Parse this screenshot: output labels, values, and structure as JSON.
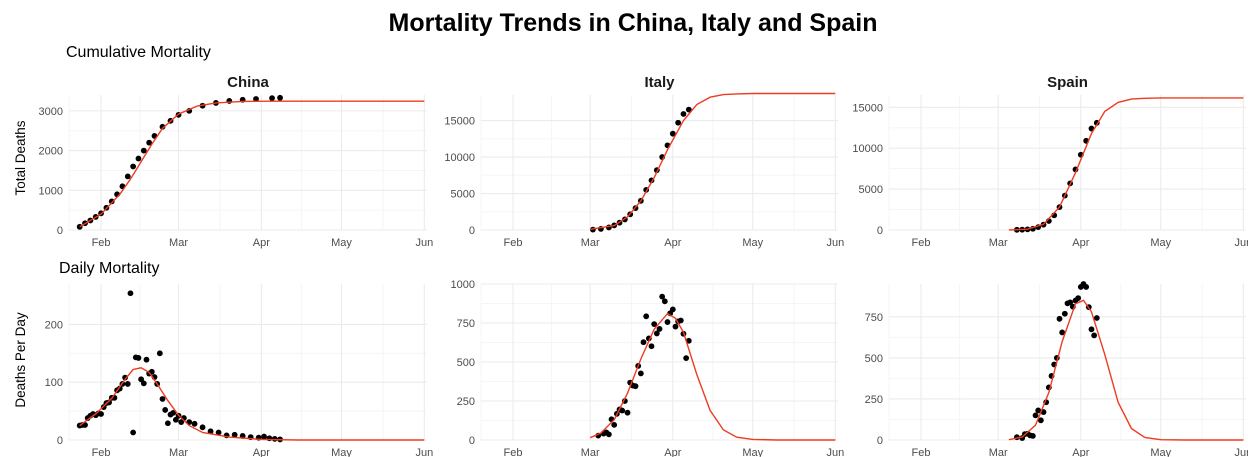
{
  "title": "Mortality Trends in China, Italy and Spain",
  "section_titles": {
    "cumulative": "Cumulative Mortality",
    "daily": "Daily Mortality"
  },
  "ylabels": {
    "cumulative": "Total Deaths",
    "daily": "Deaths Per Day"
  },
  "x_ticks": [
    "Feb",
    "Mar",
    "Apr",
    "May",
    "Jun"
  ],
  "colors": {
    "points": "#000000",
    "fit_line": "#ee3b22",
    "grid_major": "#ebebeb",
    "grid_minor": "#f5f5f5"
  },
  "chart_data": [
    {
      "type": "scatter",
      "panel": "China",
      "row": "cumulative",
      "xlabel": "",
      "ylabel": "Total Deaths",
      "xlim": [
        "2020-01-20",
        "2020-06-02"
      ],
      "ylim": [
        0,
        3400
      ],
      "yticks": [
        0,
        1000,
        2000,
        3000
      ],
      "series": [
        {
          "kind": "points",
          "x": [
            "2020-01-24",
            "2020-01-26",
            "2020-01-28",
            "2020-01-30",
            "2020-02-01",
            "2020-02-03",
            "2020-02-05",
            "2020-02-07",
            "2020-02-09",
            "2020-02-11",
            "2020-02-13",
            "2020-02-15",
            "2020-02-17",
            "2020-02-19",
            "2020-02-21",
            "2020-02-24",
            "2020-02-27",
            "2020-03-01",
            "2020-03-05",
            "2020-03-10",
            "2020-03-15",
            "2020-03-20",
            "2020-03-25",
            "2020-03-30",
            "2020-04-05",
            "2020-04-08"
          ],
          "y": [
            80,
            170,
            240,
            330,
            420,
            560,
            720,
            900,
            1100,
            1350,
            1600,
            1800,
            2000,
            2200,
            2370,
            2600,
            2750,
            2900,
            3000,
            3130,
            3200,
            3250,
            3280,
            3300,
            3320,
            3330
          ]
        },
        {
          "kind": "fit",
          "x": [
            "2020-01-24",
            "2020-02-01",
            "2020-02-08",
            "2020-02-12",
            "2020-02-16",
            "2020-02-20",
            "2020-02-24",
            "2020-03-01",
            "2020-03-08",
            "2020-03-15",
            "2020-03-25",
            "2020-04-05",
            "2020-05-01",
            "2020-06-01"
          ],
          "y": [
            80,
            400,
            900,
            1280,
            1720,
            2160,
            2560,
            2920,
            3120,
            3200,
            3240,
            3245,
            3245,
            3245
          ]
        }
      ]
    },
    {
      "type": "scatter",
      "panel": "Italy",
      "row": "cumulative",
      "xlabel": "",
      "ylabel": "",
      "xlim": [
        "2020-01-20",
        "2020-06-02"
      ],
      "ylim": [
        0,
        18500
      ],
      "yticks": [
        0,
        5000,
        10000,
        15000
      ],
      "series": [
        {
          "kind": "points",
          "x": [
            "2020-03-02",
            "2020-03-05",
            "2020-03-08",
            "2020-03-10",
            "2020-03-12",
            "2020-03-14",
            "2020-03-16",
            "2020-03-18",
            "2020-03-20",
            "2020-03-22",
            "2020-03-24",
            "2020-03-26",
            "2020-03-28",
            "2020-03-30",
            "2020-04-01",
            "2020-04-03",
            "2020-04-05",
            "2020-04-07"
          ],
          "y": [
            50,
            150,
            350,
            630,
            1000,
            1450,
            2150,
            3000,
            4000,
            5500,
            6800,
            8200,
            10000,
            11600,
            13200,
            14700,
            15900,
            16500
          ]
        },
        {
          "kind": "fit",
          "x": [
            "2020-03-01",
            "2020-03-10",
            "2020-03-15",
            "2020-03-20",
            "2020-03-25",
            "2020-03-30",
            "2020-04-05",
            "2020-04-10",
            "2020-04-15",
            "2020-04-20",
            "2020-04-25",
            "2020-05-01",
            "2020-06-01"
          ],
          "y": [
            100,
            600,
            1800,
            4000,
            7200,
            11000,
            15000,
            17200,
            18200,
            18550,
            18650,
            18700,
            18700
          ]
        }
      ]
    },
    {
      "type": "scatter",
      "panel": "Spain",
      "row": "cumulative",
      "xlabel": "",
      "ylabel": "",
      "xlim": [
        "2020-01-20",
        "2020-06-02"
      ],
      "ylim": [
        0,
        16500
      ],
      "yticks": [
        0,
        5000,
        10000,
        15000
      ],
      "series": [
        {
          "kind": "points",
          "x": [
            "2020-03-08",
            "2020-03-10",
            "2020-03-12",
            "2020-03-14",
            "2020-03-16",
            "2020-03-18",
            "2020-03-20",
            "2020-03-22",
            "2020-03-24",
            "2020-03-26",
            "2020-03-28",
            "2020-03-30",
            "2020-04-01",
            "2020-04-03",
            "2020-04-05",
            "2020-04-07"
          ],
          "y": [
            20,
            40,
            80,
            150,
            350,
            650,
            1100,
            1800,
            2800,
            4200,
            5700,
            7400,
            9200,
            10900,
            12400,
            13100
          ]
        },
        {
          "kind": "fit",
          "x": [
            "2020-03-05",
            "2020-03-12",
            "2020-03-18",
            "2020-03-24",
            "2020-03-30",
            "2020-04-05",
            "2020-04-10",
            "2020-04-15",
            "2020-04-20",
            "2020-04-25",
            "2020-05-01",
            "2020-06-01"
          ],
          "y": [
            0,
            100,
            700,
            2800,
            7000,
            11800,
            14500,
            15600,
            16000,
            16100,
            16150,
            16150
          ]
        }
      ]
    },
    {
      "type": "scatter",
      "panel": "China",
      "row": "daily",
      "xlabel": "",
      "ylabel": "Deaths Per Day",
      "xlim": [
        "2020-01-20",
        "2020-06-02"
      ],
      "ylim": [
        0,
        270
      ],
      "yticks": [
        0,
        100,
        200
      ],
      "series": [
        {
          "kind": "points",
          "x": [
            "2020-01-24",
            "2020-01-25",
            "2020-01-26",
            "2020-01-27",
            "2020-01-28",
            "2020-01-29",
            "2020-01-30",
            "2020-01-31",
            "2020-02-01",
            "2020-02-02",
            "2020-02-03",
            "2020-02-04",
            "2020-02-05",
            "2020-02-06",
            "2020-02-07",
            "2020-02-08",
            "2020-02-09",
            "2020-02-10",
            "2020-02-11",
            "2020-02-12",
            "2020-02-13",
            "2020-02-14",
            "2020-02-15",
            "2020-02-16",
            "2020-02-17",
            "2020-02-18",
            "2020-02-19",
            "2020-02-20",
            "2020-02-21",
            "2020-02-22",
            "2020-02-23",
            "2020-02-24",
            "2020-02-25",
            "2020-02-26",
            "2020-02-27",
            "2020-02-28",
            "2020-02-29",
            "2020-03-01",
            "2020-03-02",
            "2020-03-03",
            "2020-03-05",
            "2020-03-07",
            "2020-03-10",
            "2020-03-13",
            "2020-03-16",
            "2020-03-19",
            "2020-03-22",
            "2020-03-25",
            "2020-03-28",
            "2020-03-31",
            "2020-04-02",
            "2020-04-04",
            "2020-04-06",
            "2020-04-08"
          ],
          "y": [
            25,
            26,
            26,
            38,
            42,
            45,
            43,
            46,
            45,
            57,
            64,
            65,
            73,
            73,
            86,
            89,
            97,
            108,
            97,
            254,
            13,
            143,
            142,
            105,
            98,
            139,
            115,
            118,
            109,
            97,
            150,
            71,
            52,
            29,
            44,
            47,
            35,
            42,
            31,
            38,
            31,
            28,
            22,
            15,
            13,
            8,
            9,
            7,
            5,
            4,
            6,
            3,
            2,
            1
          ]
        },
        {
          "kind": "fit",
          "x": [
            "2020-01-24",
            "2020-01-30",
            "2020-02-05",
            "2020-02-10",
            "2020-02-13",
            "2020-02-16",
            "2020-02-19",
            "2020-02-22",
            "2020-02-26",
            "2020-03-01",
            "2020-03-05",
            "2020-03-10",
            "2020-03-20",
            "2020-04-01",
            "2020-04-15",
            "2020-06-01"
          ],
          "y": [
            25,
            45,
            72,
            105,
            122,
            125,
            117,
            97,
            68,
            43,
            25,
            13,
            5,
            1,
            0,
            0
          ]
        }
      ]
    },
    {
      "type": "scatter",
      "panel": "Italy",
      "row": "daily",
      "xlabel": "",
      "ylabel": "",
      "xlim": [
        "2020-01-20",
        "2020-06-02"
      ],
      "ylim": [
        0,
        1000
      ],
      "yticks": [
        0,
        250,
        500,
        750,
        1000
      ],
      "series": [
        {
          "kind": "points",
          "x": [
            "2020-03-04",
            "2020-03-06",
            "2020-03-07",
            "2020-03-08",
            "2020-03-09",
            "2020-03-10",
            "2020-03-11",
            "2020-03-12",
            "2020-03-13",
            "2020-03-14",
            "2020-03-15",
            "2020-03-16",
            "2020-03-17",
            "2020-03-18",
            "2020-03-19",
            "2020-03-20",
            "2020-03-21",
            "2020-03-22",
            "2020-03-23",
            "2020-03-24",
            "2020-03-25",
            "2020-03-26",
            "2020-03-27",
            "2020-03-28",
            "2020-03-29",
            "2020-03-30",
            "2020-03-31",
            "2020-04-01",
            "2020-04-02",
            "2020-04-03",
            "2020-04-04",
            "2020-04-05",
            "2020-04-06",
            "2020-04-07"
          ],
          "y": [
            28,
            41,
            49,
            36,
            133,
            97,
            168,
            196,
            189,
            250,
            175,
            368,
            349,
            345,
            475,
            427,
            627,
            793,
            651,
            601,
            743,
            683,
            712,
            919,
            889,
            756,
            812,
            837,
            727,
            760,
            766,
            681,
            525,
            636
          ]
        },
        {
          "kind": "fit",
          "x": [
            "2020-03-01",
            "2020-03-05",
            "2020-03-10",
            "2020-03-15",
            "2020-03-20",
            "2020-03-25",
            "2020-03-30",
            "2020-04-02",
            "2020-04-05",
            "2020-04-10",
            "2020-04-15",
            "2020-04-20",
            "2020-04-25",
            "2020-05-01",
            "2020-05-10",
            "2020-06-01"
          ],
          "y": [
            15,
            45,
            130,
            300,
            520,
            710,
            810,
            780,
            690,
            420,
            190,
            65,
            18,
            4,
            0,
            0
          ]
        }
      ]
    },
    {
      "type": "scatter",
      "panel": "Spain",
      "row": "daily",
      "xlabel": "",
      "ylabel": "",
      "xlim": [
        "2020-01-20",
        "2020-06-02"
      ],
      "ylim": [
        0,
        950
      ],
      "yticks": [
        0,
        250,
        500,
        750
      ],
      "series": [
        {
          "kind": "points",
          "x": [
            "2020-03-08",
            "2020-03-10",
            "2020-03-11",
            "2020-03-12",
            "2020-03-13",
            "2020-03-14",
            "2020-03-15",
            "2020-03-16",
            "2020-03-17",
            "2020-03-18",
            "2020-03-19",
            "2020-03-20",
            "2020-03-21",
            "2020-03-22",
            "2020-03-23",
            "2020-03-24",
            "2020-03-25",
            "2020-03-26",
            "2020-03-27",
            "2020-03-28",
            "2020-03-29",
            "2020-03-30",
            "2020-03-31",
            "2020-04-01",
            "2020-04-02",
            "2020-04-03",
            "2020-04-04",
            "2020-04-05",
            "2020-04-06",
            "2020-04-07"
          ],
          "y": [
            17,
            12,
            36,
            38,
            28,
            25,
            150,
            180,
            120,
            170,
            230,
            320,
            390,
            460,
            500,
            738,
            655,
            769,
            832,
            838,
            812,
            849,
            864,
            932,
            950,
            932,
            809,
            674,
            637,
            743
          ]
        },
        {
          "kind": "fit",
          "x": [
            "2020-03-05",
            "2020-03-10",
            "2020-03-15",
            "2020-03-20",
            "2020-03-25",
            "2020-03-30",
            "2020-04-02",
            "2020-04-05",
            "2020-04-10",
            "2020-04-15",
            "2020-04-20",
            "2020-04-25",
            "2020-05-01",
            "2020-05-10",
            "2020-06-01"
          ],
          "y": [
            2,
            18,
            90,
            290,
            600,
            830,
            850,
            780,
            520,
            230,
            70,
            15,
            2,
            0,
            0
          ]
        }
      ]
    }
  ]
}
